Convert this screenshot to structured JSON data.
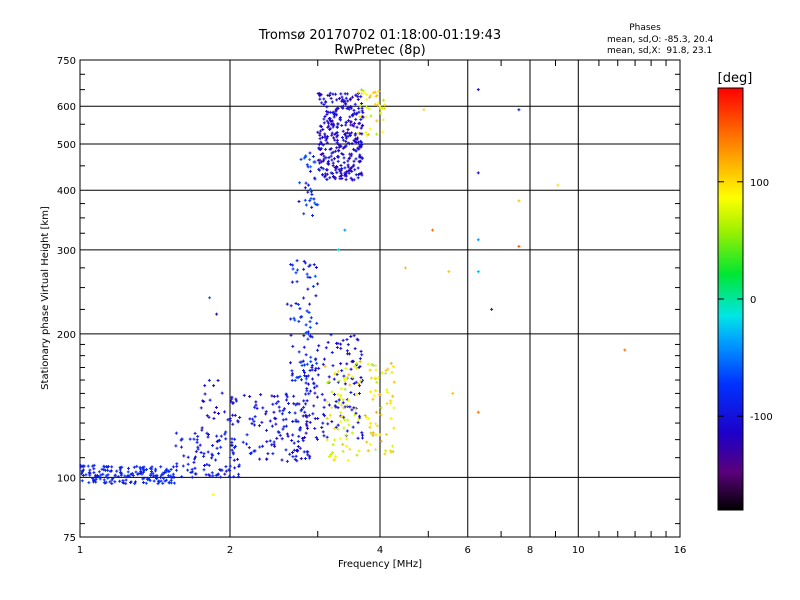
{
  "chart_data": {
    "type": "scatter",
    "title": "Tromsø 20170702 01:18:00-01:19:43",
    "subtitle": "RwPretec (8p)",
    "xlabel": "Frequency [MHz]",
    "ylabel": "Stationary phase Virtual Height [km]",
    "x_scale": "log",
    "y_scale": "log",
    "xlim": [
      1,
      16
    ],
    "ylim": [
      75,
      750
    ],
    "x_ticks": [
      1,
      2,
      4,
      6,
      8,
      10,
      16
    ],
    "x_tick_labels": [
      "1",
      "2",
      "4",
      "6",
      "8",
      "10",
      "16"
    ],
    "y_ticks": [
      75,
      100,
      200,
      300,
      400,
      500,
      600,
      750
    ],
    "y_tick_labels": [
      "75",
      "100",
      "200",
      "300",
      "400",
      "500",
      "600",
      "750"
    ],
    "grid": true,
    "phases_box": {
      "heading": "Phases",
      "line1": "mean, sd,O: -85.3, 20.4",
      "line2": "mean, sd,X:  91.8, 23.1"
    },
    "colorbar": {
      "label": "[deg]",
      "range": [
        -180,
        180
      ],
      "ticks": [
        100,
        0,
        -100
      ],
      "tick_labels": [
        "100",
        "0",
        "-100"
      ]
    },
    "clusters": [
      {
        "name": "low-blue",
        "x": [
          1.0,
          1.55
        ],
        "y": [
          97,
          106
        ],
        "phase": [
          -100,
          -70
        ],
        "count": 170
      },
      {
        "name": "ramp-blue",
        "x": [
          1.55,
          2.1
        ],
        "y": [
          100,
          125
        ],
        "phase": [
          -110,
          -80
        ],
        "count": 90
      },
      {
        "name": "mid-blue",
        "x": [
          2.0,
          2.9
        ],
        "y": [
          108,
          150
        ],
        "phase": [
          -120,
          -80
        ],
        "count": 150
      },
      {
        "name": "knee-blue",
        "x": [
          1.75,
          2.0
        ],
        "y": [
          118,
          160
        ],
        "phase": [
          -120,
          -90
        ],
        "count": 25
      },
      {
        "name": "e-cusp",
        "x": [
          2.6,
          3.0
        ],
        "y": [
          150,
          290
        ],
        "phase": [
          -120,
          -60
        ],
        "count": 80
      },
      {
        "name": "upper-mid",
        "x": [
          2.8,
          3.7
        ],
        "y": [
          120,
          200
        ],
        "phase": [
          -120,
          -90
        ],
        "count": 140
      },
      {
        "name": "x-yellow",
        "x": [
          3.1,
          4.3
        ],
        "y": [
          108,
          175
        ],
        "phase": [
          60,
          120
        ],
        "count": 130
      },
      {
        "name": "f-rise",
        "x": [
          2.75,
          3.0
        ],
        "y": [
          350,
          480
        ],
        "phase": [
          -110,
          -50
        ],
        "count": 35
      },
      {
        "name": "f-layer",
        "x": [
          3.0,
          3.7
        ],
        "y": [
          420,
          640
        ],
        "phase": [
          -130,
          -90
        ],
        "count": 340
      },
      {
        "name": "f-yellow",
        "x": [
          3.6,
          4.1
        ],
        "y": [
          520,
          650
        ],
        "phase": [
          60,
          120
        ],
        "count": 40
      }
    ],
    "points": [
      {
        "x": 6.3,
        "y": 650,
        "phase": -110
      },
      {
        "x": 7.6,
        "y": 590,
        "phase": -100
      },
      {
        "x": 6.3,
        "y": 435,
        "phase": -120
      },
      {
        "x": 9.1,
        "y": 410,
        "phase": 100
      },
      {
        "x": 5.1,
        "y": 330,
        "phase": 140
      },
      {
        "x": 7.6,
        "y": 305,
        "phase": 150
      },
      {
        "x": 6.3,
        "y": 315,
        "phase": -40
      },
      {
        "x": 5.5,
        "y": 270,
        "phase": 110
      },
      {
        "x": 6.3,
        "y": 270,
        "phase": -30
      },
      {
        "x": 6.7,
        "y": 225,
        "phase": -150
      },
      {
        "x": 4.5,
        "y": 275,
        "phase": 110
      },
      {
        "x": 12.4,
        "y": 185,
        "phase": 140
      },
      {
        "x": 5.6,
        "y": 150,
        "phase": 110
      },
      {
        "x": 6.3,
        "y": 137,
        "phase": 140
      },
      {
        "x": 1.82,
        "y": 238,
        "phase": -60
      },
      {
        "x": 1.88,
        "y": 220,
        "phase": -130
      },
      {
        "x": 1.85,
        "y": 92,
        "phase": 90
      },
      {
        "x": 3.4,
        "y": 330,
        "phase": -40
      },
      {
        "x": 3.3,
        "y": 300,
        "phase": -20
      },
      {
        "x": 4.9,
        "y": 590,
        "phase": 100
      },
      {
        "x": 7.6,
        "y": 380,
        "phase": 110
      }
    ]
  }
}
